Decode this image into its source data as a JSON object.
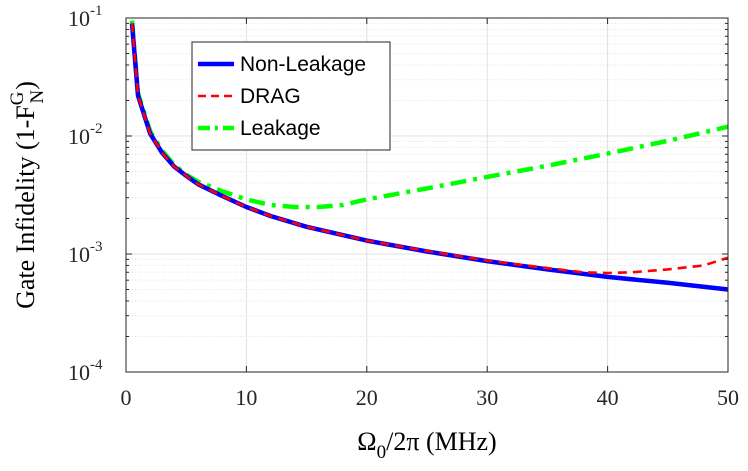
{
  "chart_data": {
    "type": "line",
    "xlabel": {
      "main": "Ω",
      "sub": "0",
      "rest": "/2π (MHz)"
    },
    "ylabel": {
      "main": "Gate Infidelity (1-F",
      "sup": "G",
      "sub": "N",
      "close": ")"
    },
    "xlim": [
      0,
      50
    ],
    "ylim": [
      0.0001,
      0.1
    ],
    "yscale": "log",
    "grid": true,
    "xticks": [
      0,
      10,
      20,
      30,
      40,
      50
    ],
    "xtick_labels": [
      "0",
      "10",
      "20",
      "30",
      "40",
      "50"
    ],
    "yticks": [
      {
        "value": 0.1,
        "base": "10",
        "exp": "-1"
      },
      {
        "value": 0.01,
        "base": "10",
        "exp": "-2"
      },
      {
        "value": 0.001,
        "base": "10",
        "exp": "-3"
      },
      {
        "value": 0.0001,
        "base": "10",
        "exp": "-4"
      }
    ],
    "legend_position": "top-left",
    "series": [
      {
        "name": "Non-Leakage",
        "color": "#0000ff",
        "style": "solid",
        "x": [
          0.5,
          1,
          2,
          3,
          4,
          5,
          6,
          8,
          10,
          12,
          15,
          20,
          25,
          30,
          35,
          40,
          45,
          50
        ],
        "y": [
          0.09,
          0.022,
          0.0105,
          0.0072,
          0.0055,
          0.0046,
          0.0039,
          0.0031,
          0.0025,
          0.0021,
          0.0017,
          0.0013,
          0.00105,
          0.00087,
          0.00074,
          0.00064,
          0.00057,
          0.0005
        ]
      },
      {
        "name": "DRAG",
        "color": "#ff0000",
        "style": "dashed",
        "x": [
          0.5,
          1,
          2,
          3,
          4,
          5,
          6,
          8,
          10,
          12,
          15,
          20,
          25,
          30,
          35,
          38,
          40,
          42,
          45,
          48,
          50
        ],
        "y": [
          0.09,
          0.022,
          0.0105,
          0.0072,
          0.0055,
          0.0046,
          0.0039,
          0.0031,
          0.0025,
          0.0021,
          0.0017,
          0.0013,
          0.00106,
          0.00088,
          0.00076,
          0.0007,
          0.00069,
          0.0007,
          0.00074,
          0.0008,
          0.00093
        ]
      },
      {
        "name": "Leakage",
        "color": "#00ff00",
        "style": "dashdot",
        "x": [
          0.5,
          1,
          2,
          3,
          4,
          5,
          6,
          8,
          10,
          12,
          14,
          15,
          16,
          18,
          20,
          25,
          30,
          35,
          40,
          45,
          50
        ],
        "y": [
          0.095,
          0.023,
          0.011,
          0.0075,
          0.0057,
          0.0047,
          0.0041,
          0.0034,
          0.0029,
          0.0026,
          0.0025,
          0.0025,
          0.0025,
          0.0026,
          0.0029,
          0.0036,
          0.0045,
          0.0056,
          0.0071,
          0.0091,
          0.012
        ]
      }
    ]
  }
}
